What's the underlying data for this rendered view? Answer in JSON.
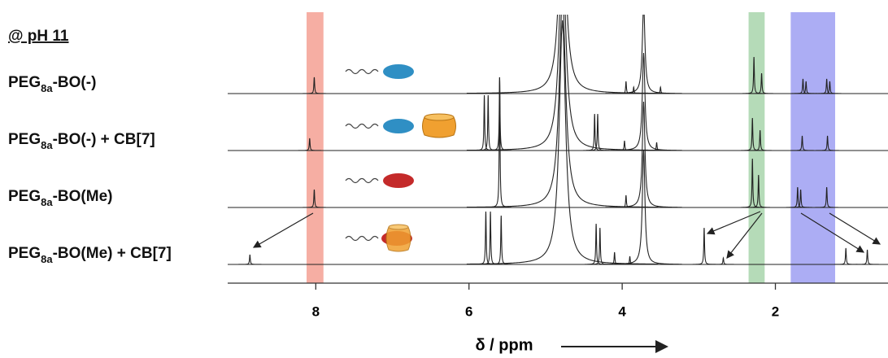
{
  "chart_data": {
    "type": "nmr",
    "condition": "@ pH 11",
    "x_label": "δ / ppm",
    "xlim": [
      9.15,
      0.53
    ],
    "xticks": [
      8,
      6,
      4,
      2
    ],
    "bands": [
      {
        "from": 8.12,
        "to": 7.9,
        "color": "#f4a093"
      },
      {
        "from": 2.35,
        "to": 2.14,
        "color": "#a8d5ac"
      },
      {
        "from": 1.8,
        "to": 1.22,
        "color": "#9d9ff2"
      }
    ],
    "series": [
      {
        "name": [
          "PEG",
          "8a",
          "-BO(-)"
        ],
        "color": "#222",
        "peaks": [
          {
            "x": 8.02,
            "h": 20
          },
          {
            "x": 4.78,
            "h": 260,
            "width": 0.05
          },
          {
            "x": 3.72,
            "h": 110,
            "width": 0.02
          },
          {
            "x": 3.95,
            "h": 15
          },
          {
            "x": 3.85,
            "h": 8
          },
          {
            "x": 3.5,
            "h": 8
          },
          {
            "x": 2.28,
            "h": 45
          },
          {
            "x": 2.18,
            "h": 25
          },
          {
            "x": 1.64,
            "h": 18
          },
          {
            "x": 1.6,
            "h": 15
          },
          {
            "x": 1.33,
            "h": 18
          },
          {
            "x": 1.29,
            "h": 15
          }
        ]
      },
      {
        "name": [
          "PEG",
          "8a",
          "-BO(-) + CB[7]"
        ],
        "color": "#222",
        "peaks": [
          {
            "x": 8.08,
            "h": 15
          },
          {
            "x": 5.8,
            "h": 68
          },
          {
            "x": 5.75,
            "h": 68
          },
          {
            "x": 5.6,
            "h": 90
          },
          {
            "x": 4.78,
            "h": 260,
            "width": 0.05
          },
          {
            "x": 4.36,
            "h": 45
          },
          {
            "x": 4.32,
            "h": 45
          },
          {
            "x": 3.72,
            "h": 120,
            "width": 0.02
          },
          {
            "x": 3.97,
            "h": 12
          },
          {
            "x": 3.55,
            "h": 10
          },
          {
            "x": 2.3,
            "h": 40
          },
          {
            "x": 2.2,
            "h": 25
          },
          {
            "x": 1.65,
            "h": 18
          },
          {
            "x": 1.32,
            "h": 18
          }
        ]
      },
      {
        "name": [
          "PEG",
          "8a",
          "-BO(Me)"
        ],
        "color": "#222",
        "peaks": [
          {
            "x": 8.02,
            "h": 22
          },
          {
            "x": 5.6,
            "h": 160
          },
          {
            "x": 4.78,
            "h": 260,
            "width": 0.05
          },
          {
            "x": 3.72,
            "h": 130,
            "width": 0.02
          },
          {
            "x": 3.95,
            "h": 15
          },
          {
            "x": 2.3,
            "h": 60
          },
          {
            "x": 2.22,
            "h": 40
          },
          {
            "x": 1.71,
            "h": 25
          },
          {
            "x": 1.67,
            "h": 22
          },
          {
            "x": 1.33,
            "h": 25
          }
        ]
      },
      {
        "name": [
          "PEG",
          "8a",
          "-BO(Me) + CB[7]"
        ],
        "color": "#222",
        "peaks": [
          {
            "x": 8.86,
            "h": 12
          },
          {
            "x": 5.78,
            "h": 65
          },
          {
            "x": 5.72,
            "h": 65
          },
          {
            "x": 5.58,
            "h": 60
          },
          {
            "x": 4.78,
            "h": 300,
            "width": 0.05
          },
          {
            "x": 4.34,
            "h": 50
          },
          {
            "x": 4.29,
            "h": 45
          },
          {
            "x": 4.1,
            "h": 15
          },
          {
            "x": 3.9,
            "h": 10
          },
          {
            "x": 3.72,
            "h": 140,
            "width": 0.02
          },
          {
            "x": 2.93,
            "h": 45
          },
          {
            "x": 2.68,
            "h": 8
          },
          {
            "x": 1.08,
            "h": 20
          },
          {
            "x": 0.8,
            "h": 18
          }
        ]
      }
    ]
  }
}
